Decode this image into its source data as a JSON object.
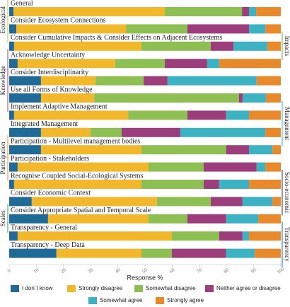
{
  "chart_data": {
    "type": "stacked-barh",
    "xlabel": "Response %",
    "xlim": [
      0,
      100
    ],
    "xticks": [
      0,
      10,
      20,
      30,
      40,
      50,
      60,
      70,
      80,
      90,
      100
    ],
    "categories": [
      "General",
      "Consider Ecosystem Connections",
      "Consider Cumulative Impacts & Consider Effects on Adjacent Ecosystems",
      "Acknowledge Uncertainty",
      "Consider Interdisciplinarity",
      "Use all Forms of Knowledge",
      "Implement Adaptive Management",
      "Integrated Management",
      "Participation - Multilevel management bodies",
      "Participation - Stakeholders",
      "Recognise Coupled Social-Ecological Systems",
      "Consider Economic Context",
      "Consider Appropriate Spatial and Temporal Scale",
      "Transparency - General",
      "Transparency - Deep Data"
    ],
    "series": [
      {
        "name": "I don´t know",
        "color": "#1f6a96",
        "values": [
          1.6,
          2.6,
          1.8,
          3.1,
          11.7,
          11.7,
          1.8,
          11.7,
          11.7,
          3.1,
          1.8,
          8.3,
          14.3,
          3.1,
          17.4
        ]
      },
      {
        "name": "Strongly disagree",
        "color": "#f2b82c",
        "values": [
          55.7,
          40.4,
          46.9,
          35.9,
          20.1,
          19.6,
          42.0,
          18.2,
          37.0,
          48.2,
          46.9,
          46.1,
          37.0,
          56.8,
          31.3
        ]
      },
      {
        "name": "Somewhat disagree",
        "color": "#8dbf52",
        "values": [
          28.4,
          22.6,
          25.5,
          18.3,
          17.7,
          53.3,
          21.8,
          11.5,
          31.2,
          20.3,
          22.9,
          19.8,
          14.3,
          17.4,
          11.2
        ]
      },
      {
        "name": "Neither agree or disagree",
        "color": "#9b3e7b",
        "values": [
          2.6,
          22.7,
          8.4,
          15.6,
          8.8,
          1.4,
          14.3,
          21.6,
          8.4,
          19.5,
          5.7,
          11.7,
          14.3,
          8.6,
          20.0
        ]
      },
      {
        "name": "Somewhat agree",
        "color": "#3db2c2",
        "values": [
          2.6,
          6.0,
          12.4,
          4.4,
          32.8,
          8.5,
          8.4,
          31.3,
          8.6,
          3.2,
          11.0,
          11.0,
          11.8,
          2.4,
          10.5
        ]
      },
      {
        "name": "Strongly agree",
        "color": "#e8892c",
        "values": [
          9.1,
          5.7,
          5.0,
          22.7,
          8.9,
          5.5,
          11.7,
          5.7,
          3.1,
          5.7,
          11.7,
          3.1,
          8.3,
          11.7,
          9.6
        ]
      }
    ],
    "groups": [
      {
        "label": "Ecological",
        "side": "left",
        "color": "#b5c93a"
      },
      {
        "label": "Knowledge",
        "side": "left",
        "color": "#9b3e7b"
      },
      {
        "label": "Participation",
        "side": "left",
        "color": "#e8892c"
      },
      {
        "label": "Scales",
        "side": "left",
        "color": "#2a9a6a"
      },
      {
        "label": "Impacts",
        "side": "right",
        "color": "#6aae3a"
      },
      {
        "label": "Management",
        "side": "right",
        "color": "#3db2c2"
      },
      {
        "label": "Socio-economic",
        "side": "right",
        "color": "#333333"
      },
      {
        "label": "Transparency",
        "side": "right",
        "color": "#1f6a96"
      }
    ]
  }
}
